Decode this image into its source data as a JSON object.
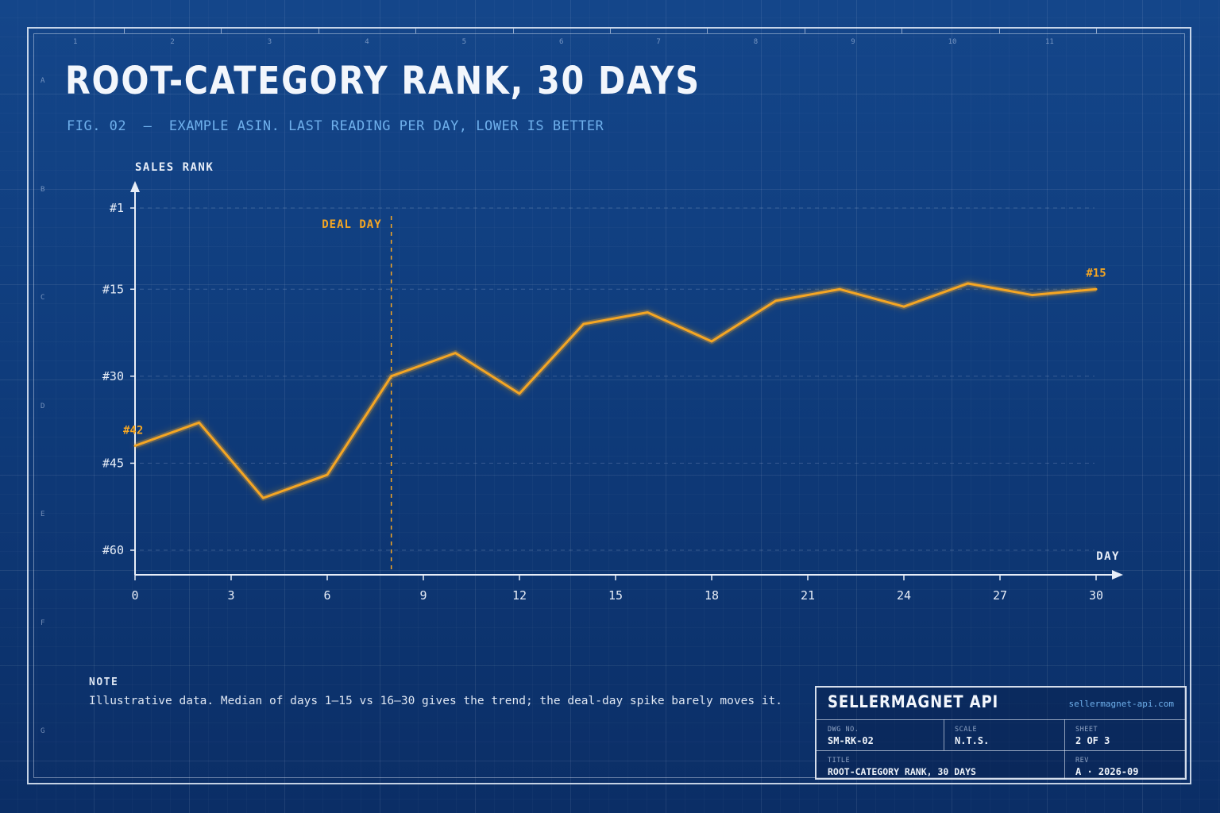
{
  "title": "ROOT-CATEGORY RANK, 30 DAYS",
  "subtitle": "FIG. 02  —  EXAMPLE ASIN. LAST READING PER DAY, LOWER IS BETTER",
  "zones": {
    "columns": [
      "1",
      "2",
      "3",
      "4",
      "5",
      "6",
      "7",
      "8",
      "9",
      "10",
      "11"
    ],
    "rows": [
      "A",
      "B",
      "C",
      "D",
      "E",
      "F",
      "G"
    ]
  },
  "colors": {
    "accent": "#f5a623",
    "axis": "#e8eef8",
    "subtitle": "#6fb0ec"
  },
  "chart_data": {
    "type": "line",
    "title": "ROOT-CATEGORY RANK, 30 DAYS",
    "xlabel": "DAY",
    "ylabel": "SALES RANK",
    "x_ticks": [
      0,
      3,
      6,
      9,
      12,
      15,
      18,
      21,
      24,
      27,
      30
    ],
    "y_ticks": [
      1,
      15,
      30,
      45,
      60
    ],
    "y_tick_labels": [
      "#1",
      "#15",
      "#30",
      "#45",
      "#60"
    ],
    "xlim": [
      0,
      30
    ],
    "ylim": [
      1,
      60
    ],
    "y_inverted": true,
    "series": [
      {
        "x": [
          0,
          2,
          4,
          6,
          8,
          10,
          12,
          14,
          16,
          18,
          20,
          22,
          24,
          26,
          28,
          30
        ],
        "values": [
          42,
          38,
          51,
          47,
          30,
          26,
          33,
          21,
          19,
          24,
          17,
          15,
          18,
          14,
          16,
          15
        ]
      }
    ],
    "annotations": [
      {
        "type": "vline",
        "x": 8,
        "label": "DEAL DAY"
      },
      {
        "type": "point-label",
        "x": 0,
        "y": 42,
        "label": "#42"
      },
      {
        "type": "point-label",
        "x": 30,
        "y": 15,
        "label": "#15"
      }
    ],
    "grid": true
  },
  "note": {
    "heading": "NOTE",
    "text": "Illustrative data. Median of days 1–15 vs 16–30 gives the trend; the deal-day spike barely moves it."
  },
  "title_block": {
    "brand": "SELLERMAGNET API",
    "url": "sellermagnet-api.com",
    "dwg_no_label": "DWG NO.",
    "dwg_no": "SM-RK-02",
    "scale_label": "SCALE",
    "scale": "N.T.S.",
    "sheet_label": "SHEET",
    "sheet": "2 OF 3",
    "title_label": "TITLE",
    "title_value": "ROOT-CATEGORY RANK, 30 DAYS",
    "rev_label": "REV",
    "rev": "A · 2026-09"
  }
}
